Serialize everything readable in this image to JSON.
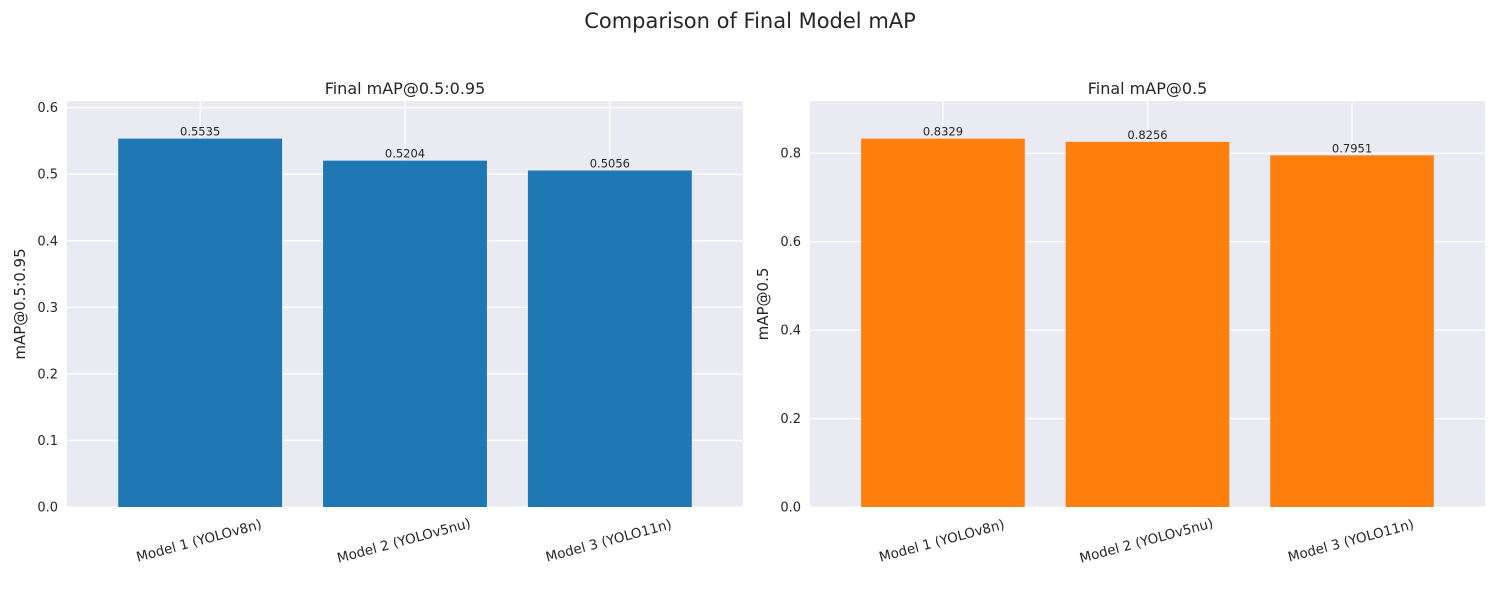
{
  "figure": {
    "suptitle": "Comparison of Final Model mAP"
  },
  "chart_data": [
    {
      "type": "bar",
      "title": "Final mAP@0.5:0.95",
      "xlabel": "",
      "ylabel": "mAP@0.5:0.95",
      "categories": [
        "Model 1 (YOLOv8n)",
        "Model 2 (YOLOv5nu)",
        "Model 3 (YOLO11n)"
      ],
      "values": [
        0.5535,
        0.5204,
        0.5056
      ],
      "value_labels": [
        "0.5535",
        "0.5204",
        "0.5056"
      ],
      "ylim": [
        0,
        0.61
      ],
      "yticks": [
        0.0,
        0.1,
        0.2,
        0.3,
        0.4,
        0.5,
        0.6
      ],
      "ytick_labels": [
        "0.0",
        "0.1",
        "0.2",
        "0.3",
        "0.4",
        "0.5",
        "0.6"
      ],
      "color": "#1f77b4",
      "grid": true
    },
    {
      "type": "bar",
      "title": "Final mAP@0.5",
      "xlabel": "",
      "ylabel": "mAP@0.5",
      "categories": [
        "Model 1 (YOLOv8n)",
        "Model 2 (YOLOv5nu)",
        "Model 3 (YOLO11n)"
      ],
      "values": [
        0.8329,
        0.8256,
        0.7951
      ],
      "value_labels": [
        "0.8329",
        "0.8256",
        "0.7951"
      ],
      "ylim": [
        0,
        0.918
      ],
      "yticks": [
        0.0,
        0.2,
        0.4,
        0.6,
        0.8
      ],
      "ytick_labels": [
        "0.0",
        "0.2",
        "0.4",
        "0.6",
        "0.8"
      ],
      "color": "#ff7f0e",
      "grid": true
    }
  ],
  "style": {
    "plot_bg": "#eaeaf2",
    "grid_color": "#ffffff",
    "text_color": "#262626"
  }
}
